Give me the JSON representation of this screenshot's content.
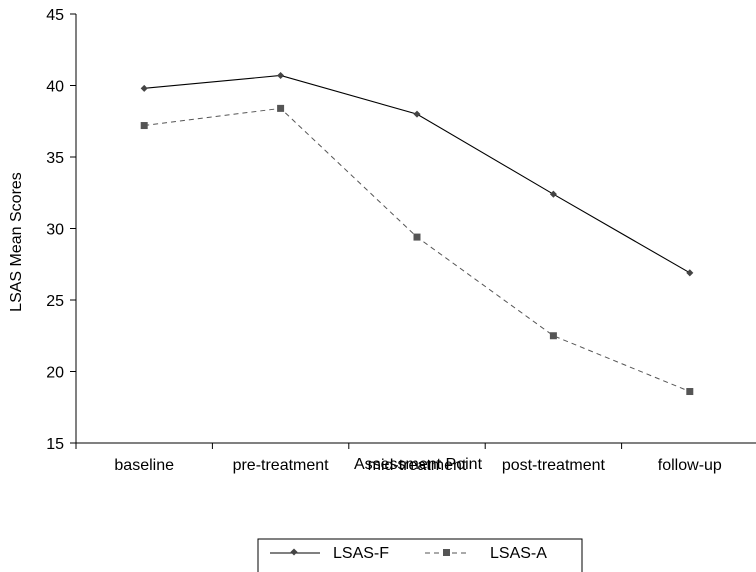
{
  "chart_data": {
    "type": "line",
    "title": "",
    "xlabel": "Assessment Point",
    "ylabel": "LSAS Mean Scores",
    "categories": [
      "baseline",
      "pre-treatment",
      "mid-treatment",
      "post-treatment",
      "follow-up"
    ],
    "ylim": [
      15,
      45
    ],
    "yticks": [
      "15",
      "20",
      "25",
      "30",
      "35",
      "40",
      "45"
    ],
    "grid": false,
    "legend_position": "bottom",
    "series": [
      {
        "name": "LSAS-F",
        "values": [
          39.8,
          40.7,
          38.0,
          32.4,
          26.9
        ],
        "marker": "diamond",
        "line_style": "solid",
        "color": "#000000"
      },
      {
        "name": "LSAS-A",
        "values": [
          37.2,
          38.4,
          29.4,
          22.5,
          18.6
        ],
        "marker": "square",
        "line_style": "dashed",
        "color": "#555555"
      }
    ]
  }
}
